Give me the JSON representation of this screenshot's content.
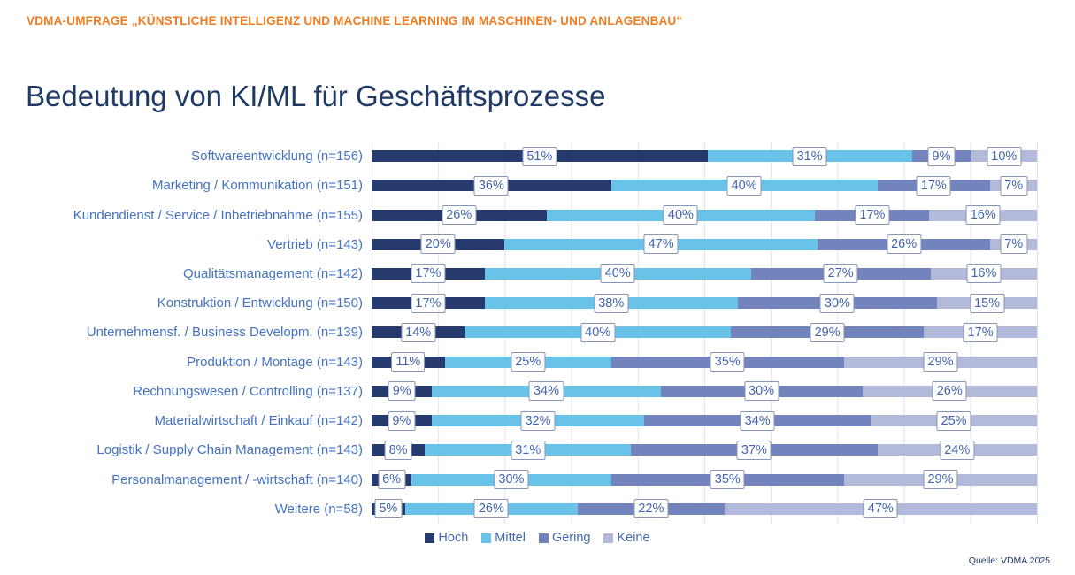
{
  "header": {
    "kicker": "VDMA-UMFRAGE „KÜNSTLICHE INTELLIGENZ UND MACHINE LEARNING IM MASCHINEN- UND ANLAGENBAU“"
  },
  "title": "Bedeutung von KI/ML für Geschäftsprozesse",
  "source": "Quelle: VDMA 2025",
  "colors": {
    "accent_orange": "#ED7D20",
    "navy": "#203A66",
    "category_label_blue": "#4472C4",
    "data_label_blue": "#4365AE",
    "hoch": "#273A6E",
    "mittel": "#69C3E9",
    "gering": "#7383BB",
    "keine": "#B3B9D8"
  },
  "chart_data": {
    "type": "bar",
    "stacked": true,
    "orientation": "horizontal",
    "unit": "percent",
    "xlim": [
      0,
      100
    ],
    "gridlines_every": 10,
    "legend_position": "bottom",
    "data_labels": "value% in white bordered boxes centered on each segment",
    "categories": [
      "Softwareentwicklung (n=156)",
      "Marketing / Kommunikation (n=151)",
      "Kundendienst / Service / Inbetriebnahme (n=155)",
      "Vertrieb (n=143)",
      "Qualitätsmanagement (n=142)",
      "Konstruktion / Entwicklung (n=150)",
      "Unternehmensf. / Business Developm. (n=139)",
      "Produktion / Montage (n=143)",
      "Rechnungswesen / Controlling (n=137)",
      "Materialwirtschaft / Einkauf (n=142)",
      "Logistik / Supply Chain Management (n=143)",
      "Personalmanagement / -wirtschaft (n=140)",
      "Weitere (n=58)"
    ],
    "series": [
      {
        "name": "Hoch",
        "color": "#273A6E",
        "values": [
          51,
          36,
          26,
          20,
          17,
          17,
          14,
          11,
          9,
          9,
          8,
          6,
          5
        ]
      },
      {
        "name": "Mittel",
        "color": "#69C3E9",
        "values": [
          31,
          40,
          40,
          47,
          40,
          38,
          40,
          25,
          34,
          32,
          31,
          30,
          26
        ]
      },
      {
        "name": "Gering",
        "color": "#7383BB",
        "values": [
          9,
          17,
          17,
          26,
          27,
          30,
          29,
          35,
          30,
          34,
          37,
          35,
          22
        ]
      },
      {
        "name": "Keine",
        "color": "#B3B9D8",
        "values": [
          10,
          7,
          16,
          7,
          16,
          15,
          17,
          29,
          26,
          25,
          24,
          29,
          47
        ]
      }
    ]
  },
  "legend": {
    "items": [
      "Hoch",
      "Mittel",
      "Gering",
      "Keine"
    ]
  }
}
